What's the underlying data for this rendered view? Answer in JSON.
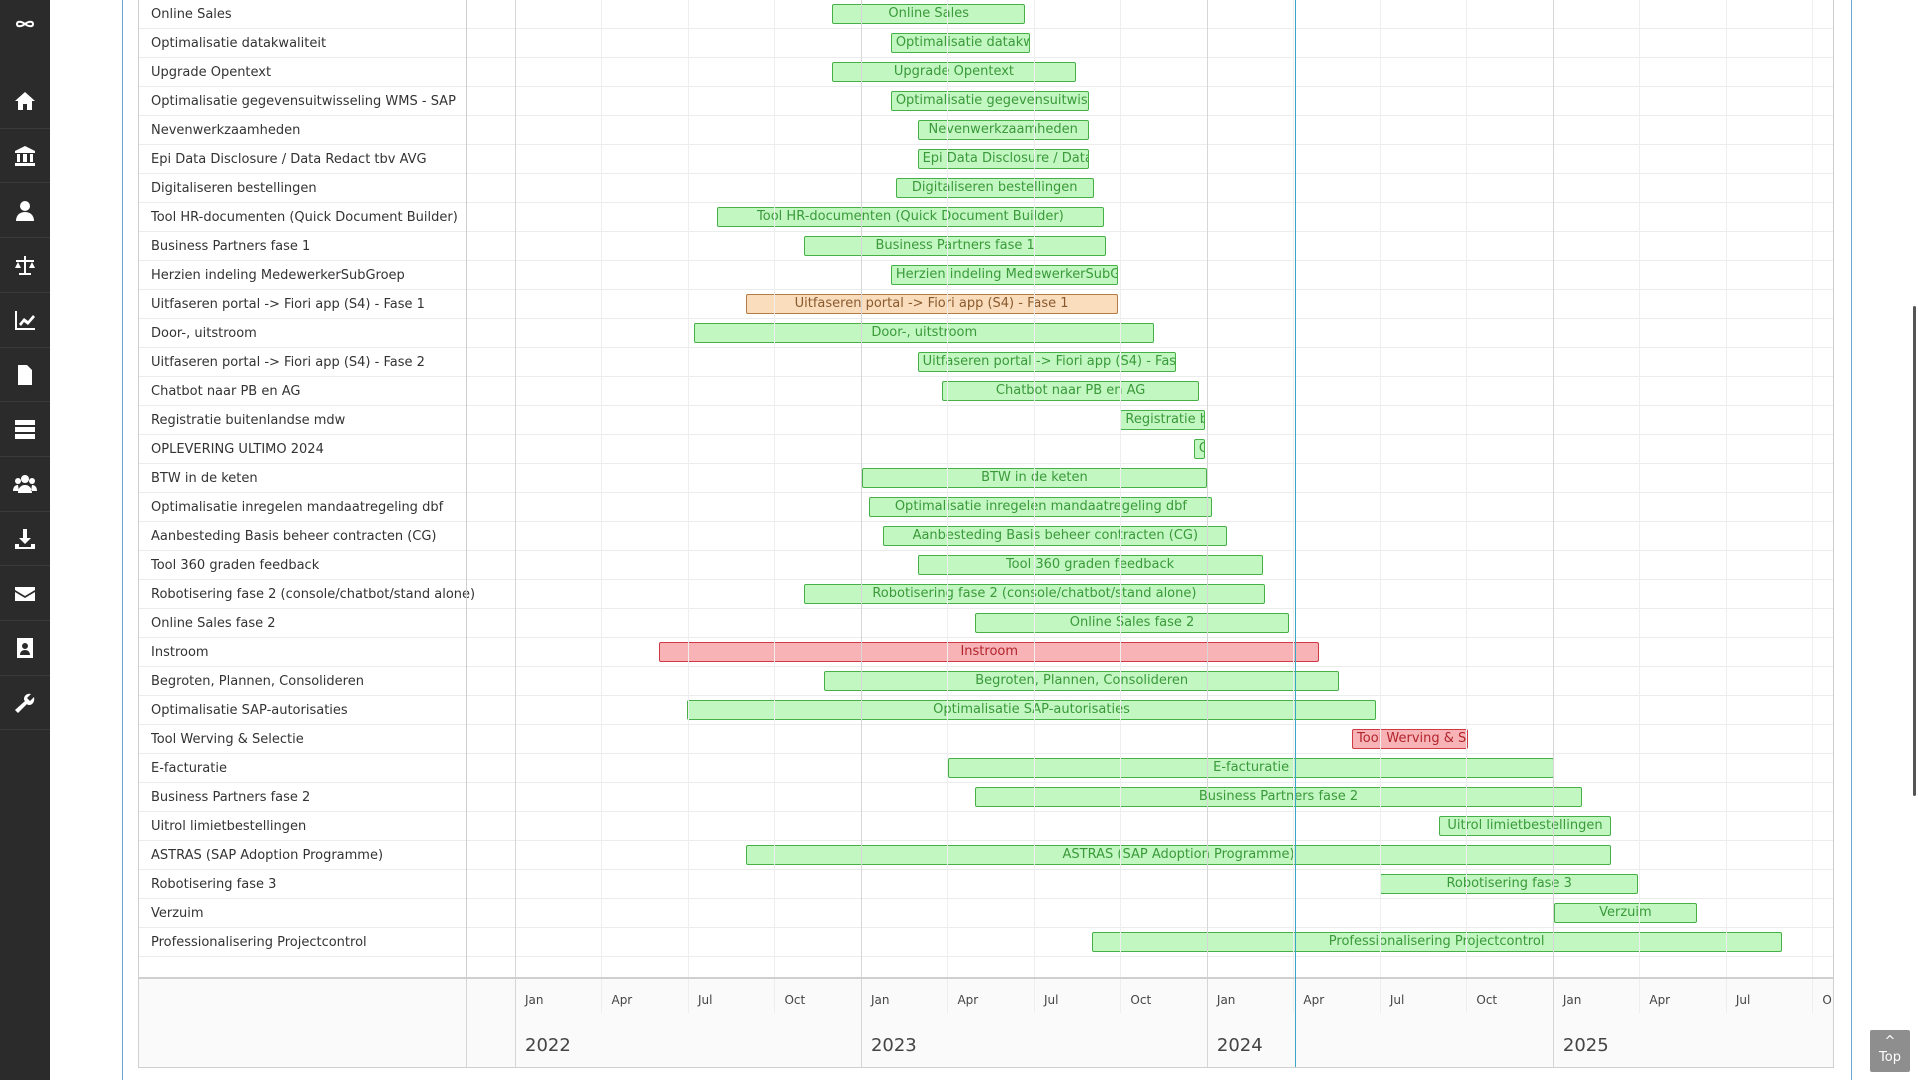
{
  "sidebar": {
    "items": [
      {
        "icon": "logo-icon"
      },
      {
        "icon": "home-icon"
      },
      {
        "icon": "bank-icon"
      },
      {
        "icon": "user-icon"
      },
      {
        "icon": "scales-icon"
      },
      {
        "icon": "chart-icon"
      },
      {
        "icon": "document-icon"
      },
      {
        "icon": "server-icon"
      },
      {
        "icon": "group-icon"
      },
      {
        "icon": "download-icon"
      },
      {
        "icon": "envelope-icon"
      },
      {
        "icon": "contact-card-icon"
      },
      {
        "icon": "wrench-icon"
      }
    ]
  },
  "colors": {
    "green": {
      "fill": "#c2f7c2",
      "border": "#46b046",
      "text": "#3a9a3a"
    },
    "orange": {
      "fill": "#f9ddbd",
      "border": "#b27a45",
      "text": "#8a5a2e"
    },
    "red": {
      "fill": "#f7b3b5",
      "border": "#cf3a44",
      "text": "#b3242e"
    },
    "today": "#3aa7c7"
  },
  "timeline": {
    "months": [
      "Jan",
      "Apr",
      "Jul",
      "Oct",
      "Jan",
      "Apr",
      "Jul",
      "Oct",
      "Jan",
      "Apr",
      "Jul",
      "Oct",
      "Jan",
      "Apr",
      "Jul",
      "O"
    ],
    "years": [
      "2022",
      "2023",
      "2024",
      "2025"
    ],
    "today": "2024-04-03"
  },
  "tasks": [
    {
      "name": "Online Sales",
      "start": "2022-12-01",
      "end": "2023-06-22",
      "status": "green"
    },
    {
      "name": "Optimalisatie datakwaliteit",
      "start": "2023-02-02",
      "end": "2023-06-27",
      "status": "green"
    },
    {
      "name": "Upgrade Opentext",
      "start": "2022-12-01",
      "end": "2023-08-15",
      "status": "green"
    },
    {
      "name": "Optimalisatie gegevensuitwisseling WMS - SAP",
      "start": "2023-02-02",
      "end": "2023-08-29",
      "status": "green"
    },
    {
      "name": "Nevenwerkzaamheden",
      "start": "2023-02-28",
      "end": "2023-08-29",
      "status": "green"
    },
    {
      "name": "Epi Data Disclosure / Data Redact tbv AVG",
      "start": "2023-02-28",
      "end": "2023-08-29",
      "status": "green"
    },
    {
      "name": "Digitaliseren bestellingen",
      "start": "2023-02-07",
      "end": "2023-09-03",
      "status": "green"
    },
    {
      "name": "Tool HR-documenten (Quick Document Builder)",
      "start": "2022-08-01",
      "end": "2023-09-14",
      "status": "green"
    },
    {
      "name": "Business Partners fase 1",
      "start": "2022-11-02",
      "end": "2023-09-16",
      "status": "green"
    },
    {
      "name": "Herzien indeling MedewerkerSubGroep",
      "start": "2023-02-02",
      "end": "2023-09-28",
      "status": "green"
    },
    {
      "name": "Uitfaseren portal -> Fiori app (S4) - Fase 1",
      "start": "2022-09-01",
      "end": "2023-09-28",
      "status": "orange"
    },
    {
      "name": "Door-, uitstroom",
      "start": "2022-07-08",
      "end": "2023-11-06",
      "status": "green"
    },
    {
      "name": "Uitfaseren portal -> Fiori app (S4) - Fase 2",
      "start": "2023-02-28",
      "end": "2023-11-29",
      "status": "green"
    },
    {
      "name": "Chatbot naar PB en AG",
      "start": "2023-03-26",
      "end": "2023-12-24",
      "status": "green"
    },
    {
      "name": "Registratie buitenlandse mdw",
      "start": "2023-10-01",
      "end": "2023-12-30",
      "status": "green"
    },
    {
      "name": "OPLEVERING ULTIMO 2024",
      "start": "2023-12-18",
      "end": "2023-12-30",
      "status": "green"
    },
    {
      "name": "BTW in de keten",
      "start": "2023-01-02",
      "end": "2024-01-01",
      "status": "green"
    },
    {
      "name": "Optimalisatie inregelen mandaatregeling dbf",
      "start": "2023-01-10",
      "end": "2024-01-07",
      "status": "green"
    },
    {
      "name": "Aanbesteding Basis beheer contracten (CG)",
      "start": "2023-01-25",
      "end": "2024-01-23",
      "status": "green"
    },
    {
      "name": "Tool 360 graden feedback",
      "start": "2023-02-28",
      "end": "2024-02-28",
      "status": "green"
    },
    {
      "name": "Robotisering fase 2 (console/chatbot/stand alone)",
      "start": "2022-11-02",
      "end": "2024-03-01",
      "status": "green"
    },
    {
      "name": "Online Sales fase 2",
      "start": "2023-04-30",
      "end": "2024-03-27",
      "status": "green"
    },
    {
      "name": "Instroom",
      "start": "2022-06-01",
      "end": "2024-04-28",
      "status": "red"
    },
    {
      "name": "Begroten, Plannen, Consolideren",
      "start": "2022-11-23",
      "end": "2024-05-19",
      "status": "green"
    },
    {
      "name": "Optimalisatie SAP-autorisaties",
      "start": "2022-06-30",
      "end": "2024-06-27",
      "status": "green"
    },
    {
      "name": "Tool Werving & Selectie",
      "start": "2024-06-02",
      "end": "2024-10-03",
      "status": "red"
    },
    {
      "name": "E-facturatie",
      "start": "2023-04-02",
      "end": "2025-01-02",
      "status": "green"
    },
    {
      "name": "Business Partners fase 2",
      "start": "2023-04-30",
      "end": "2025-02-01",
      "status": "green"
    },
    {
      "name": "Uitrol limietbestellingen",
      "start": "2024-09-02",
      "end": "2025-03-02",
      "status": "green"
    },
    {
      "name": "ASTRAS (SAP Adoption Programme)",
      "start": "2022-09-01",
      "end": "2025-03-02",
      "status": "green"
    },
    {
      "name": "Robotisering fase 3",
      "start": "2024-07-01",
      "end": "2025-03-31",
      "status": "green"
    },
    {
      "name": "Verzuim",
      "start": "2025-01-02",
      "end": "2025-06-01",
      "status": "green"
    },
    {
      "name": "Professionalisering Projectcontrol",
      "start": "2023-09-01",
      "end": "2025-08-30",
      "status": "green"
    }
  ],
  "top_button": {
    "arrow": "^",
    "label": "Top"
  }
}
